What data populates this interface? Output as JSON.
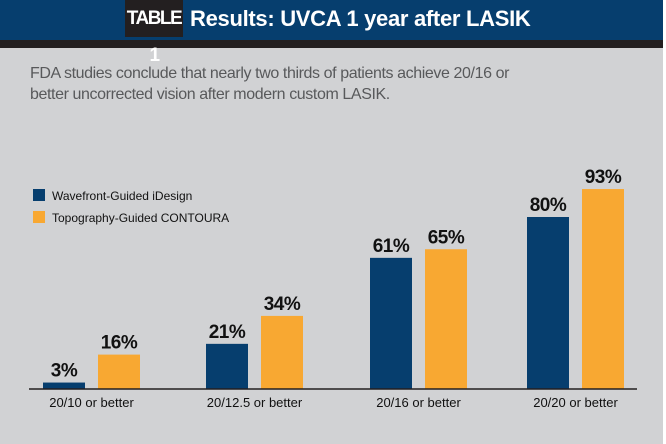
{
  "header": {
    "tag": "TABLE 1",
    "title": "Results: UVCA 1 year after LASIK"
  },
  "subtitle": "FDA studies conclude that nearly two thirds of patients achieve 20/16 or better uncorrected vision after modern custom LASIK.",
  "chart_data": {
    "type": "bar",
    "title": "Results: UVCA 1 year after LASIK",
    "categories": [
      "20/10 or better",
      "20/12.5 or better",
      "20/16 or better",
      "20/20 or better"
    ],
    "series": [
      {
        "name": "Wavefront-Guided iDesign",
        "color": "#063e6e",
        "values": [
          3,
          21,
          61,
          80
        ],
        "labels": [
          "3%",
          "21%",
          "61%",
          "80%"
        ]
      },
      {
        "name": "Topography-Guided CONTOURA",
        "color": "#f8a832",
        "values": [
          16,
          34,
          65,
          93
        ],
        "labels": [
          "16%",
          "34%",
          "65%",
          "93%"
        ]
      }
    ],
    "ylim": [
      0,
      100
    ],
    "legend": "left",
    "grid": false,
    "xlabel": "",
    "ylabel": ""
  }
}
